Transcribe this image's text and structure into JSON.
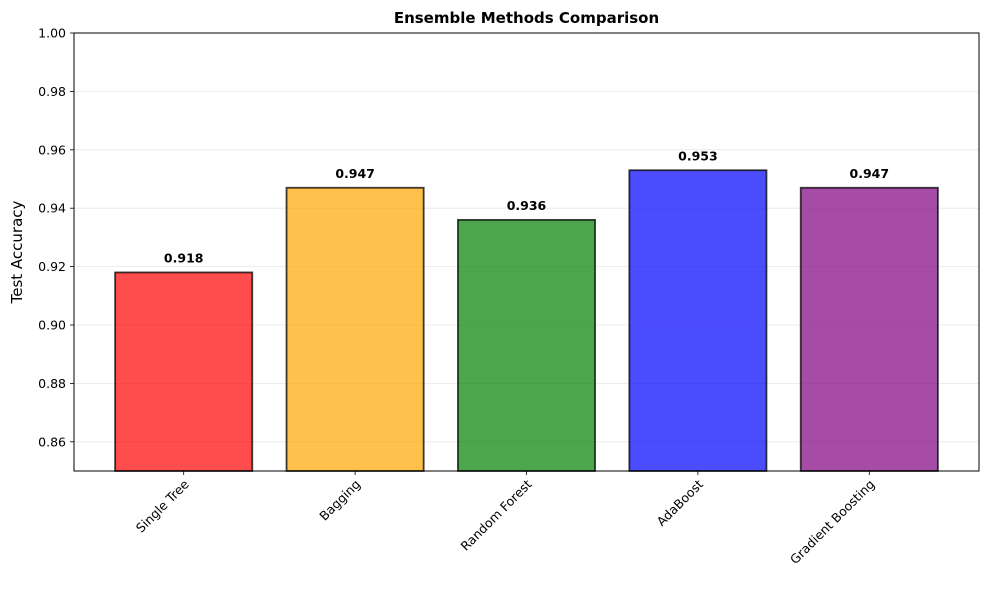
{
  "chart_data": {
    "type": "bar",
    "title": "Ensemble Methods Comparison",
    "xlabel": "",
    "ylabel": "Test Accuracy",
    "categories": [
      "Single Tree",
      "Bagging",
      "Random Forest",
      "AdaBoost",
      "Gradient Boosting"
    ],
    "values": [
      0.918,
      0.947,
      0.936,
      0.953,
      0.947
    ],
    "value_labels": [
      "0.918",
      "0.947",
      "0.936",
      "0.953",
      "0.947"
    ],
    "colors": [
      "#ff0000",
      "#ffa500",
      "#008000",
      "#0000ff",
      "#800080"
    ],
    "bar_alpha": 0.7,
    "edge_color": "#000000",
    "ylim": [
      0.85,
      1.0
    ],
    "yticks": [
      0.86,
      0.88,
      0.9,
      0.92,
      0.94,
      0.96,
      0.98,
      1.0
    ],
    "ytick_labels": [
      "0.86",
      "0.88",
      "0.90",
      "0.92",
      "0.94",
      "0.96",
      "0.98",
      "1.00"
    ],
    "grid": "y",
    "xtick_rotation": "45"
  }
}
